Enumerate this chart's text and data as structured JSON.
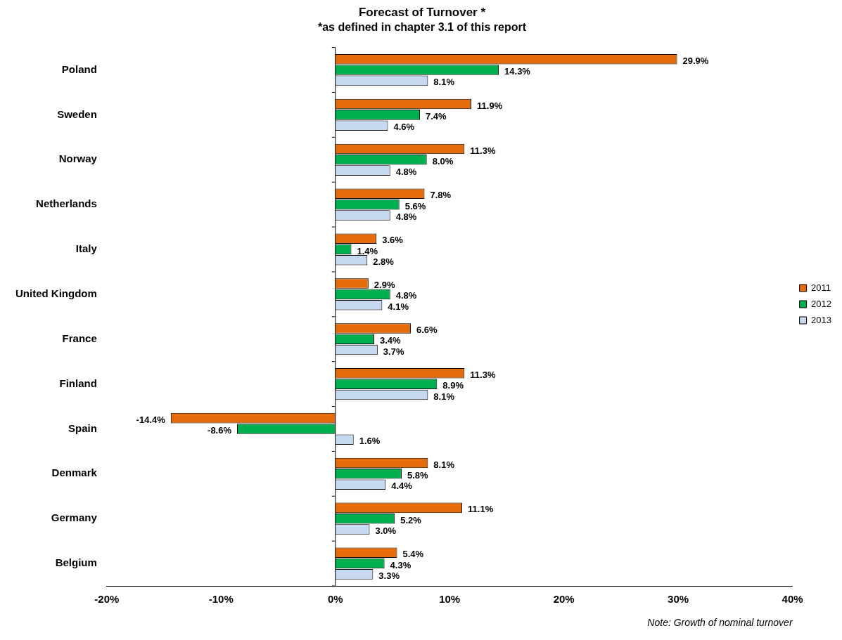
{
  "chart_data": {
    "type": "bar",
    "orientation": "horizontal",
    "title": "Forecast of Turnover *",
    "subtitle": "*as defined in chapter 3.1 of this report",
    "categories": [
      "Poland",
      "Sweden",
      "Norway",
      "Netherlands",
      "Italy",
      "United Kingdom",
      "France",
      "Finland",
      "Spain",
      "Denmark",
      "Germany",
      "Belgium"
    ],
    "series": [
      {
        "name": "2011",
        "color": "#e46c0a",
        "values": [
          29.9,
          11.9,
          11.3,
          7.8,
          3.6,
          2.9,
          6.6,
          11.3,
          -14.4,
          8.1,
          11.1,
          5.4
        ],
        "value_labels": [
          "29.9%",
          "11.9%",
          "11.3%",
          "7.8%",
          "3.6%",
          "2.9%",
          "6.6%",
          "11.3%",
          "-14.4%",
          "8.1%",
          "11.1%",
          "5.4%"
        ]
      },
      {
        "name": "2012",
        "color": "#00b050",
        "values": [
          14.3,
          7.4,
          8.0,
          5.6,
          1.4,
          4.8,
          3.4,
          8.9,
          -8.6,
          5.8,
          5.2,
          4.3
        ],
        "value_labels": [
          "14.3%",
          "7.4%",
          "8.0%",
          "5.6%",
          "1.4%",
          "4.8%",
          "3.4%",
          "8.9%",
          "-8.6%",
          "5.8%",
          "5.2%",
          "4.3%"
        ]
      },
      {
        "name": "2013",
        "color": "#c6d9f1",
        "values": [
          8.1,
          4.6,
          4.8,
          4.8,
          2.8,
          4.1,
          3.7,
          8.1,
          1.6,
          4.4,
          3.0,
          3.3
        ],
        "value_labels": [
          "8.1%",
          "4.6%",
          "4.8%",
          "4.8%",
          "2.8%",
          "4.1%",
          "3.7%",
          "8.1%",
          "1.6%",
          "4.4%",
          "3.0%",
          "3.3%"
        ]
      }
    ],
    "xlim": [
      -20,
      40
    ],
    "xticks": [
      {
        "value": -20,
        "label": "-20%"
      },
      {
        "value": -10,
        "label": "-10%"
      },
      {
        "value": 0,
        "label": "0%"
      },
      {
        "value": 10,
        "label": "10%"
      },
      {
        "value": 20,
        "label": "20%"
      },
      {
        "value": 30,
        "label": "30%"
      },
      {
        "value": 40,
        "label": "40%"
      }
    ],
    "grid": false,
    "legend": "right",
    "ref_lines": [
      {
        "axis": "x",
        "value": 0,
        "color": "#000000"
      }
    ],
    "annotations": [
      "Note: Growth of nominal turnover"
    ]
  }
}
